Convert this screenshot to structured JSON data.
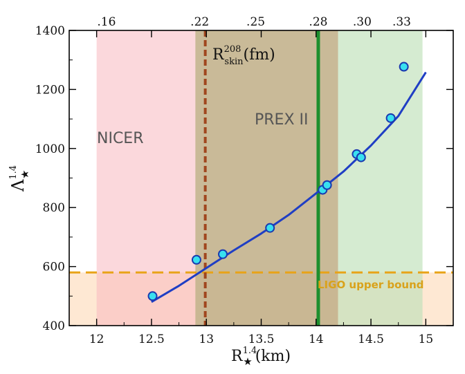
{
  "chart_data": {
    "type": "scatter",
    "title": "",
    "xlabel": "R",
    "xlabel_sup": "1.4",
    "xlabel_sub": "★",
    "xlabel_unit": "(km)",
    "ylabel": "Λ",
    "ylabel_sup": "1.4",
    "ylabel_sub": "★",
    "xlim": [
      11.75,
      15.25
    ],
    "ylim": [
      400,
      1400
    ],
    "xticks": [
      12,
      12.5,
      13,
      13.5,
      14,
      14.5,
      15
    ],
    "xtick_labels": [
      "12",
      "12.5",
      "13",
      "13.5",
      "14",
      "14.5",
      "15"
    ],
    "yticks": [
      400,
      600,
      800,
      1000,
      1200,
      1400
    ],
    "ytick_labels": [
      "400",
      "600",
      "800",
      "1000",
      "1200",
      "1400"
    ],
    "top_axis": {
      "label": "R",
      "label_sup": "208",
      "label_sub": "skin",
      "label_unit": "(fm)",
      "tick_labels": [
        ".16",
        ".22",
        ".25",
        ".28",
        ".30",
        ".33"
      ],
      "tick_positions_in_R": [
        12.09,
        12.94,
        13.45,
        14.02,
        14.42,
        14.78
      ]
    },
    "regions": [
      {
        "name": "NICER",
        "label": "NICER",
        "x": [
          12.0,
          14.2
        ],
        "color": "#f7b8c0"
      },
      {
        "name": "PREX II",
        "label": "PREX II",
        "x": [
          12.9,
          14.2
        ],
        "color": "#b5ae7e"
      },
      {
        "name": "PREX II upper",
        "label": "",
        "x": [
          14.2,
          14.97
        ],
        "color": "#bfe0b8"
      },
      {
        "name": "LIGO",
        "label": "LIGO upper bound",
        "y": [
          400,
          580
        ],
        "color": "#fde0c4"
      }
    ],
    "lines": {
      "ligo_bound_y": 580,
      "ligo_color": "#e8a317",
      "prex_dashed_x": 12.99,
      "prex_dashed_color": "#a0461e",
      "prex_solid_x": 14.02,
      "prex_solid_color": "#1e8f2e"
    },
    "series": [
      {
        "type": "scatter",
        "x": [
          12.51,
          12.91,
          13.15,
          13.58,
          14.06,
          14.1,
          14.37,
          14.41,
          14.68,
          14.8
        ],
        "y": [
          500,
          623,
          642,
          731,
          860,
          876,
          981,
          970,
          1103,
          1277
        ],
        "marker_color": "#38e0f0",
        "edge_color": "#1a3ab0"
      },
      {
        "type": "line",
        "x": [
          12.5,
          12.75,
          13.0,
          13.25,
          13.5,
          13.75,
          14.0,
          14.25,
          14.5,
          14.75,
          15.0
        ],
        "y": [
          480,
          535,
          595,
          655,
          712,
          775,
          848,
          922,
          1010,
          1110,
          1258
        ],
        "color": "#1f3ec4"
      }
    ]
  }
}
